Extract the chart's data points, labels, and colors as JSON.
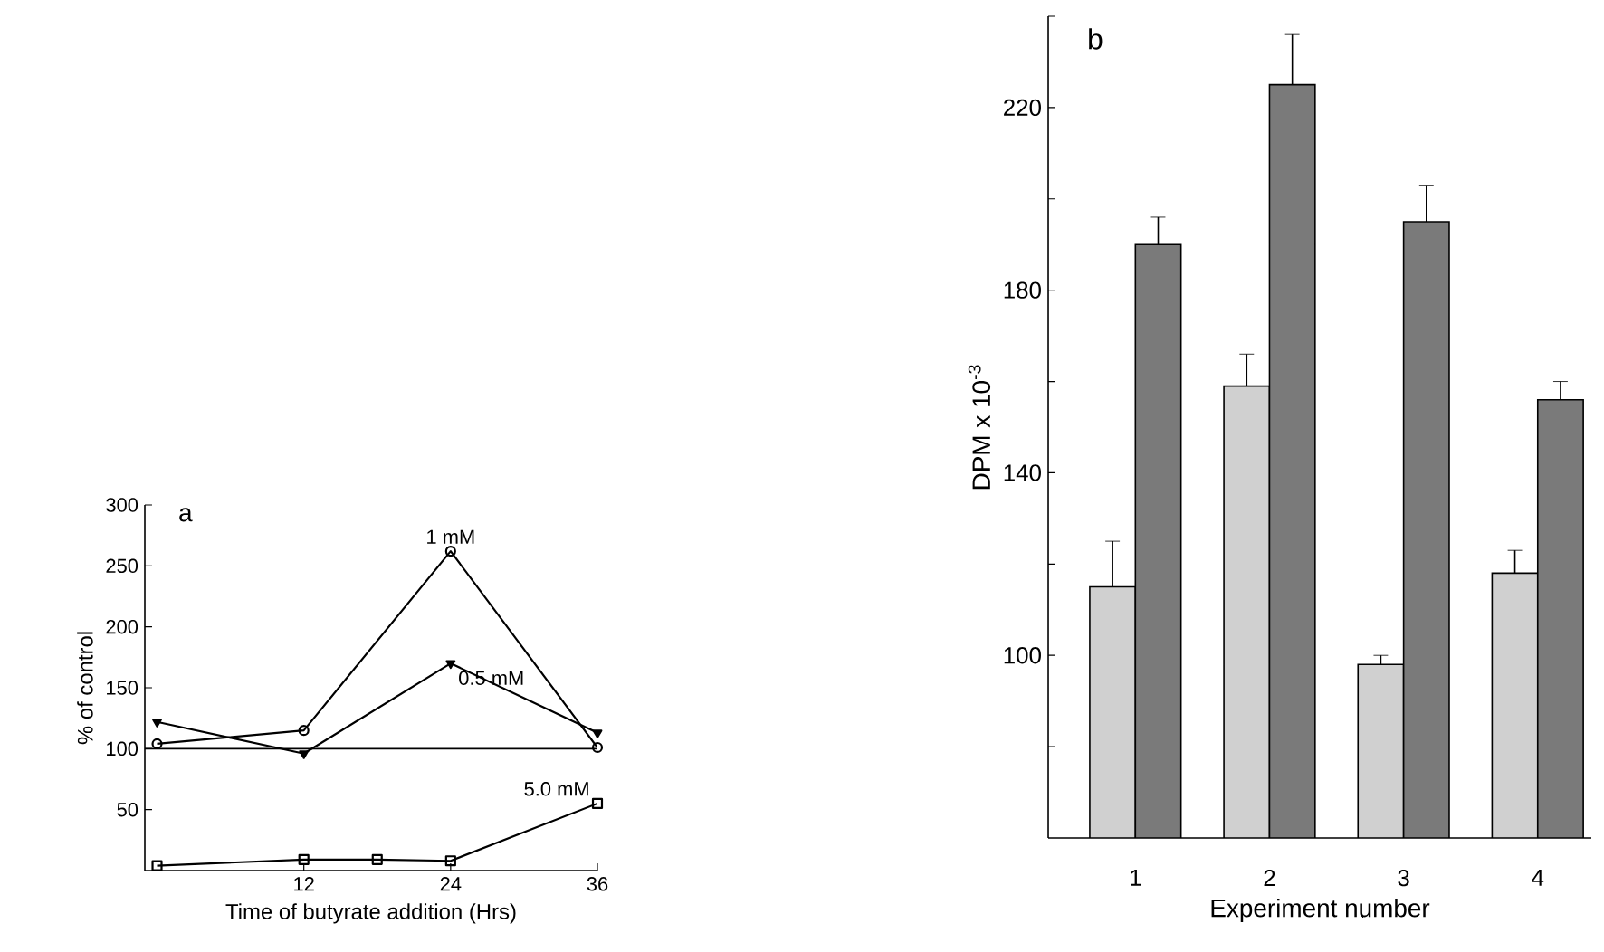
{
  "chart_data": [
    {
      "type": "line",
      "title": "a",
      "xlabel": "Time of butyrate addition (Hrs)",
      "ylabel": "% of control",
      "xlim": [
        -1,
        36
      ],
      "ylim": [
        0,
        300
      ],
      "xticks": [
        12,
        24,
        36
      ],
      "yticks": [
        50,
        100,
        150,
        200,
        250,
        300
      ],
      "ref_lines": [
        {
          "axis": "y",
          "value": 100,
          "color": "#000000"
        }
      ],
      "series": [
        {
          "name": "1 mM",
          "color": "#000000",
          "marker": "circle",
          "x": [
            0,
            12,
            24,
            36
          ],
          "values": [
            104,
            115,
            262,
            101
          ]
        },
        {
          "name": "0.5 mM",
          "color": "#000000",
          "marker": "triangle",
          "x": [
            0,
            12,
            24,
            36
          ],
          "values": [
            122,
            96,
            170,
            113
          ]
        },
        {
          "name": "5.0 mM",
          "color": "#000000",
          "marker": "square",
          "x": [
            0,
            12,
            18,
            24,
            36
          ],
          "values": [
            4,
            9,
            9,
            8,
            55
          ]
        }
      ]
    },
    {
      "type": "bar",
      "title": "b",
      "xlabel": "Experiment number",
      "ylabel": "DPM x 10$^{-3}$",
      "categories": [
        "1",
        "2",
        "3",
        "4"
      ],
      "ylim": [
        60,
        240
      ],
      "yticks": [
        {
          "value": 80,
          "label": null
        },
        100,
        {
          "value": 120,
          "label": null
        },
        140,
        {
          "value": 160,
          "label": null
        },
        180,
        {
          "value": 200,
          "label": null
        },
        220,
        {
          "value": 240,
          "label": null
        }
      ],
      "series": [
        {
          "color": "#d0d0d0",
          "values": [
            115,
            159,
            98,
            118
          ],
          "errors": [
            [
              115,
              125
            ],
            [
              159,
              166
            ],
            [
              98,
              100
            ],
            [
              118,
              123
            ]
          ]
        },
        {
          "color": "#7a7a7a",
          "values": [
            190,
            225,
            195,
            156
          ],
          "errors": [
            [
              190,
              196
            ],
            [
              225,
              236
            ],
            [
              195,
              203
            ],
            [
              156,
              160
            ]
          ]
        }
      ]
    }
  ]
}
